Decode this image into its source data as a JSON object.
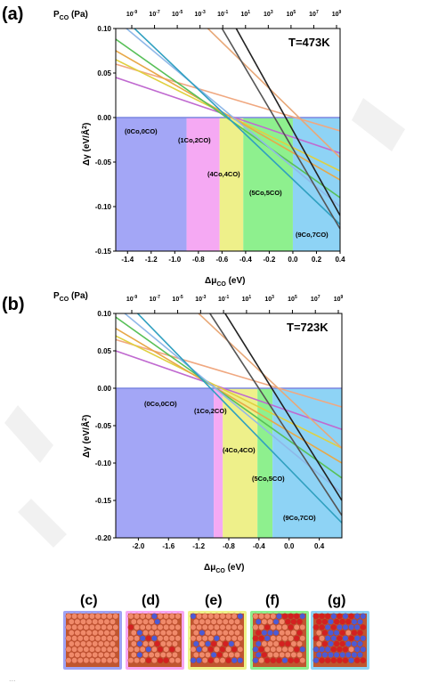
{
  "panels": [
    {
      "letter": "(a)",
      "temp_label": "T=473K",
      "region_labels": [
        "(0Co,0CO)",
        "(1Co,2CO)",
        "(4Co,4CO)",
        "(5Co,5CO)",
        "(9Co,7CO)"
      ]
    },
    {
      "letter": "(b)",
      "temp_label": "T=723K",
      "region_labels": [
        "(0Co,0CO)",
        "(1Co,2CO)",
        "(4Co,4CO)",
        "(5Co,5CO)",
        "(9Co,7CO)"
      ]
    }
  ],
  "structures": {
    "labels": [
      "(c)",
      "(d)",
      "(e)",
      "(f)",
      "(g)"
    ],
    "border_colors": [
      "#9fa3f5",
      "#f7a6f2",
      "#eef28a",
      "#8ef08e",
      "#8ed3f5"
    ]
  },
  "caption_partial": "...",
  "chart_data": [
    {
      "type": "line",
      "title": "",
      "xlabel": "Δμ_CO (eV)",
      "ylabel": "Δγ (eV/Å²)",
      "top_axis_label": "P_CO (Pa)",
      "top_ticks": [
        "10^-9",
        "10^-7",
        "10^-5",
        "10^-3",
        "10^-1",
        "10^1",
        "10^3",
        "10^5",
        "10^7",
        "10^9"
      ],
      "xlim": [
        -1.5,
        0.4
      ],
      "ylim": [
        -0.15,
        0.1
      ],
      "xticks": [
        "-1.4",
        "-1.2",
        "-1.0",
        "-0.8",
        "-0.6",
        "-0.4",
        "-0.2",
        "0.0",
        "0.2",
        "0.4"
      ],
      "yticks": [
        "0.10",
        "0.05",
        "0.00",
        "-0.05",
        "-0.10",
        "-0.15"
      ],
      "regions": [
        {
          "label": "(0Co,0CO)",
          "x_from": -1.5,
          "x_to": -0.9,
          "color": "#a3a6f6"
        },
        {
          "label": "(1Co,2CO)",
          "x_from": -0.9,
          "x_to": -0.62,
          "color": "#f5a9f3"
        },
        {
          "label": "(4Co,4CO)",
          "x_from": -0.62,
          "x_to": -0.42,
          "color": "#eef08a"
        },
        {
          "label": "(5Co,5CO)",
          "x_from": -0.42,
          "x_to": 0.0,
          "color": "#8ef08e"
        },
        {
          "label": "(9Co,7CO)",
          "x_from": 0.0,
          "x_to": 0.4,
          "color": "#8ed3f5"
        }
      ],
      "series": [
        {
          "color": "#7b86e0",
          "points": [
            [
              -1.5,
              0.0
            ],
            [
              0.4,
              0.0
            ]
          ]
        },
        {
          "color": "#f0a880",
          "points": [
            [
              -1.5,
              0.06
            ],
            [
              0.4,
              -0.015
            ]
          ]
        },
        {
          "color": "#c06ad0",
          "points": [
            [
              -1.5,
              0.045
            ],
            [
              0.4,
              -0.04
            ]
          ]
        },
        {
          "color": "#e0d040",
          "points": [
            [
              -1.5,
              0.065
            ],
            [
              0.4,
              -0.06
            ]
          ]
        },
        {
          "color": "#e8a848",
          "points": [
            [
              -1.5,
              0.075
            ],
            [
              0.4,
              -0.07
            ]
          ]
        },
        {
          "color": "#58c058",
          "points": [
            [
              -1.5,
              0.088
            ],
            [
              0.4,
              -0.09
            ]
          ]
        },
        {
          "color": "#8fb8e8",
          "points": [
            [
              -1.5,
              0.11
            ],
            [
              0.4,
              -0.1
            ]
          ]
        },
        {
          "color": "#30a0c0",
          "points": [
            [
              -1.5,
              0.12
            ],
            [
              0.4,
              -0.12
            ]
          ]
        },
        {
          "color": "#e8a878",
          "points": [
            [
              -0.72,
              0.1
            ],
            [
              0.4,
              -0.045
            ]
          ]
        },
        {
          "color": "#555555",
          "points": [
            [
              -0.6,
              0.1
            ],
            [
              0.4,
              -0.125
            ]
          ]
        },
        {
          "color": "#222222",
          "points": [
            [
              -0.48,
              0.1
            ],
            [
              0.4,
              -0.11
            ]
          ]
        }
      ]
    },
    {
      "type": "line",
      "title": "",
      "xlabel": "Δμ_CO (eV)",
      "ylabel": "Δγ (eV/Å²)",
      "top_axis_label": "P_CO (Pa)",
      "top_ticks": [
        "10^-9",
        "10^-7",
        "10^-5",
        "10^-3",
        "10^-1",
        "10^1",
        "10^3",
        "10^5",
        "10^7",
        "10^9"
      ],
      "xlim": [
        -2.3,
        0.7
      ],
      "ylim": [
        -0.2,
        0.1
      ],
      "xticks": [
        "-2.0",
        "-1.6",
        "-1.2",
        "-0.8",
        "-0.4",
        "0.0",
        "0.4"
      ],
      "yticks": [
        "0.10",
        "0.05",
        "0.00",
        "-0.05",
        "-0.10",
        "-0.15",
        "-0.20"
      ],
      "regions": [
        {
          "label": "(0Co,0CO)",
          "x_from": -2.3,
          "x_to": -1.0,
          "color": "#a3a6f6"
        },
        {
          "label": "(1Co,2CO)",
          "x_from": -1.0,
          "x_to": -0.88,
          "color": "#f5a9f3"
        },
        {
          "label": "(4Co,4CO)",
          "x_from": -0.88,
          "x_to": -0.42,
          "color": "#eef08a"
        },
        {
          "label": "(5Co,5CO)",
          "x_from": -0.42,
          "x_to": -0.22,
          "color": "#8ef08e"
        },
        {
          "label": "(9Co,7CO)",
          "x_from": -0.22,
          "x_to": 0.7,
          "color": "#8ed3f5"
        }
      ],
      "series": [
        {
          "color": "#7b86e0",
          "points": [
            [
              -2.3,
              0.0
            ],
            [
              0.7,
              0.0
            ]
          ]
        },
        {
          "color": "#f0a880",
          "points": [
            [
              -2.3,
              0.065
            ],
            [
              0.7,
              -0.025
            ]
          ]
        },
        {
          "color": "#c06ad0",
          "points": [
            [
              -2.3,
              0.05
            ],
            [
              0.7,
              -0.055
            ]
          ]
        },
        {
          "color": "#e0d040",
          "points": [
            [
              -2.3,
              0.07
            ],
            [
              0.7,
              -0.08
            ]
          ]
        },
        {
          "color": "#e8a848",
          "points": [
            [
              -2.3,
              0.08
            ],
            [
              0.7,
              -0.1
            ]
          ]
        },
        {
          "color": "#58c058",
          "points": [
            [
              -2.3,
              0.095
            ],
            [
              0.7,
              -0.12
            ]
          ]
        },
        {
          "color": "#8fb8e8",
          "points": [
            [
              -2.3,
              0.11
            ],
            [
              0.7,
              -0.14
            ]
          ]
        },
        {
          "color": "#30a0c0",
          "points": [
            [
              -2.3,
              0.13
            ],
            [
              0.7,
              -0.18
            ]
          ]
        },
        {
          "color": "#e8a878",
          "points": [
            [
              -1.2,
              0.1
            ],
            [
              0.7,
              -0.08
            ]
          ]
        },
        {
          "color": "#555555",
          "points": [
            [
              -1.05,
              0.1
            ],
            [
              0.7,
              -0.17
            ]
          ]
        },
        {
          "color": "#222222",
          "points": [
            [
              -0.85,
              0.1
            ],
            [
              0.7,
              -0.15
            ]
          ]
        }
      ]
    }
  ]
}
